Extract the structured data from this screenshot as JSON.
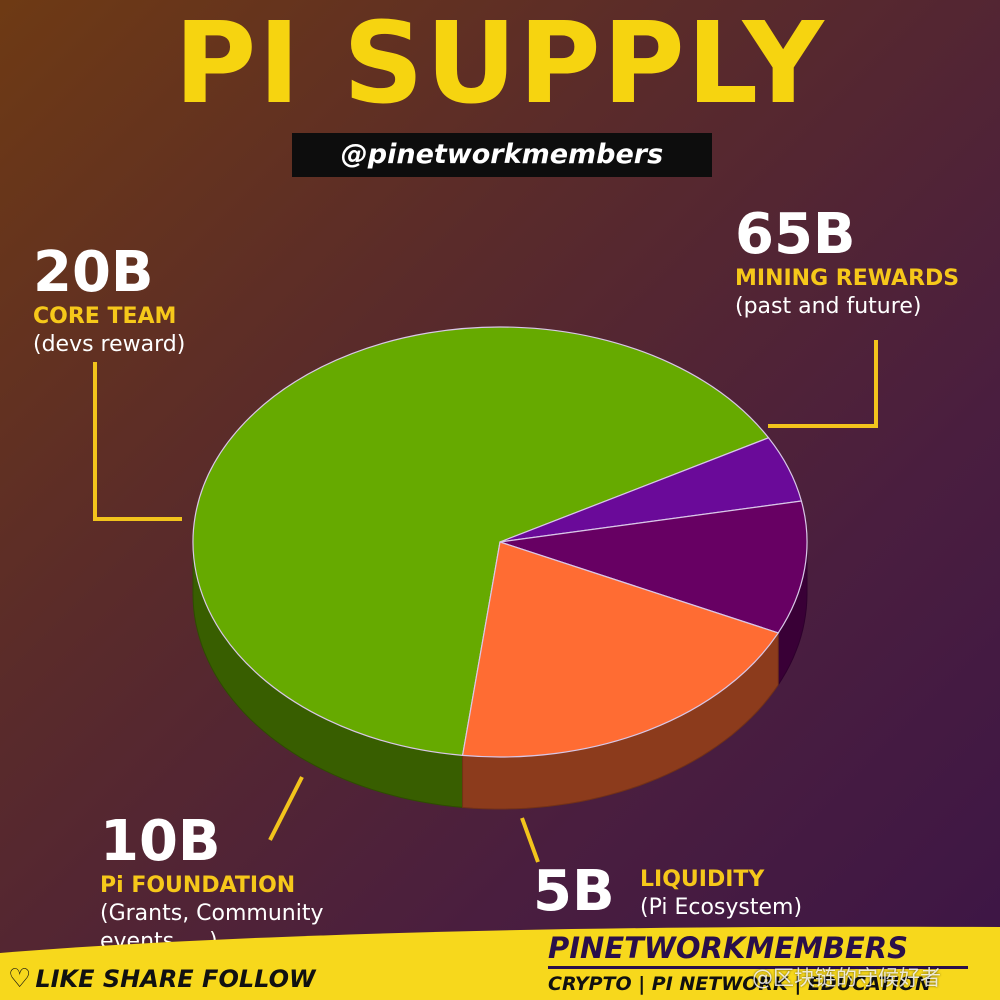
{
  "title": "PI SUPPLY",
  "handle": "@pinetworkmembers",
  "chart_data": {
    "type": "pie",
    "title": "PI SUPPLY",
    "unit": "B",
    "slices": [
      {
        "key": "mining",
        "value": 65,
        "amount": "65B",
        "category": "MINING REWARDS",
        "detail": "(past and future)",
        "color": "#66aa00"
      },
      {
        "key": "liquidity",
        "value": 5,
        "amount": "5B",
        "category": "LIQUIDITY",
        "detail": "(Pi Ecosystem)",
        "color": "#6a0a99"
      },
      {
        "key": "foundation",
        "value": 10,
        "amount": "10B",
        "category": "Pi FOUNDATION",
        "detail_line1": "(Grants, Community",
        "detail_line2": "events, ...)",
        "color": "#670063"
      },
      {
        "key": "core",
        "value": 20,
        "amount": "20B",
        "category": "CORE TEAM",
        "detail": "(devs reward)",
        "color": "#ff6c33"
      }
    ]
  },
  "footer": {
    "follow": "LIKE SHARE FOLLOW",
    "brand_name": "PINETWORKMEMBERS",
    "brand_tag": "CRYPTO | PI NETWORK | EDUCATION",
    "watermark": "@区块链的守候好者"
  },
  "colors": {
    "title": "#f6d410",
    "accent": "#f6c81a",
    "banner": "#f7d81c"
  }
}
